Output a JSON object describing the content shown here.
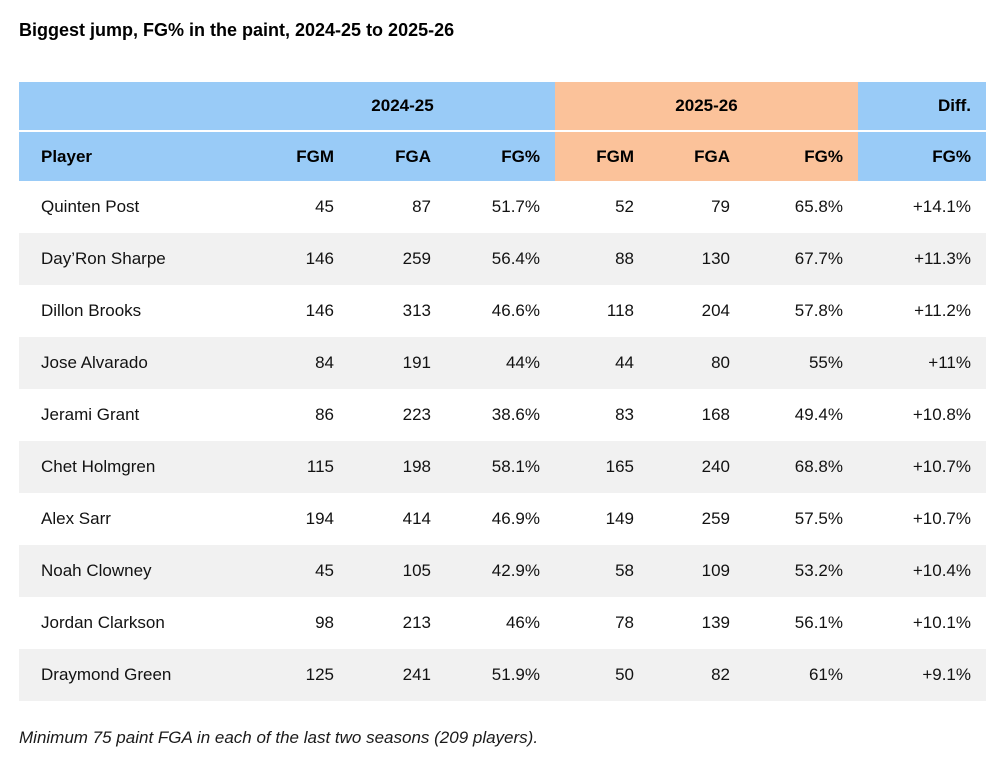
{
  "chart_data": {
    "type": "table",
    "title": "Biggest jump, FG% in the paint, 2024-25 to 2025-26",
    "footnote": "Minimum 75 paint FGA in each of the last two seasons (209 players).",
    "group_headers": [
      {
        "label": "",
        "span": 1
      },
      {
        "label": "2024-25",
        "span": 3
      },
      {
        "label": "2025-26",
        "span": 3
      },
      {
        "label": "Diff.",
        "span": 1
      }
    ],
    "columns": [
      "Player",
      "FGM",
      "FGA",
      "FG%",
      "FGM",
      "FGA",
      "FG%",
      "FG%"
    ],
    "rows": [
      [
        "Quinten Post",
        45,
        87,
        "51.7%",
        52,
        79,
        "65.8%",
        "+14.1%"
      ],
      [
        "Day’Ron Sharpe",
        146,
        259,
        "56.4%",
        88,
        130,
        "67.7%",
        "+11.3%"
      ],
      [
        "Dillon Brooks",
        146,
        313,
        "46.6%",
        118,
        204,
        "57.8%",
        "+11.2%"
      ],
      [
        "Jose Alvarado",
        84,
        191,
        "44%",
        44,
        80,
        "55%",
        "+11%"
      ],
      [
        "Jerami Grant",
        86,
        223,
        "38.6%",
        83,
        168,
        "49.4%",
        "+10.8%"
      ],
      [
        "Chet Holmgren",
        115,
        198,
        "58.1%",
        165,
        240,
        "68.8%",
        "+10.7%"
      ],
      [
        "Alex Sarr",
        194,
        414,
        "46.9%",
        149,
        259,
        "57.5%",
        "+10.7%"
      ],
      [
        "Noah Clowney",
        45,
        105,
        "42.9%",
        58,
        109,
        "53.2%",
        "+10.4%"
      ],
      [
        "Jordan Clarkson",
        98,
        213,
        "46%",
        78,
        139,
        "56.1%",
        "+10.1%"
      ],
      [
        "Draymond Green",
        125,
        241,
        "51.9%",
        50,
        82,
        "61%",
        "+9.1%"
      ]
    ],
    "layout": {
      "legend": "none",
      "grid": "off",
      "striped_rows": true,
      "season1_columns_align": "right",
      "player_column_align": "left"
    },
    "colors": {
      "season1_bg": "#99CBF7",
      "season2_bg": "#FBC29A",
      "alt_row_bg": "#F1F1F1",
      "text": "#121212"
    }
  }
}
